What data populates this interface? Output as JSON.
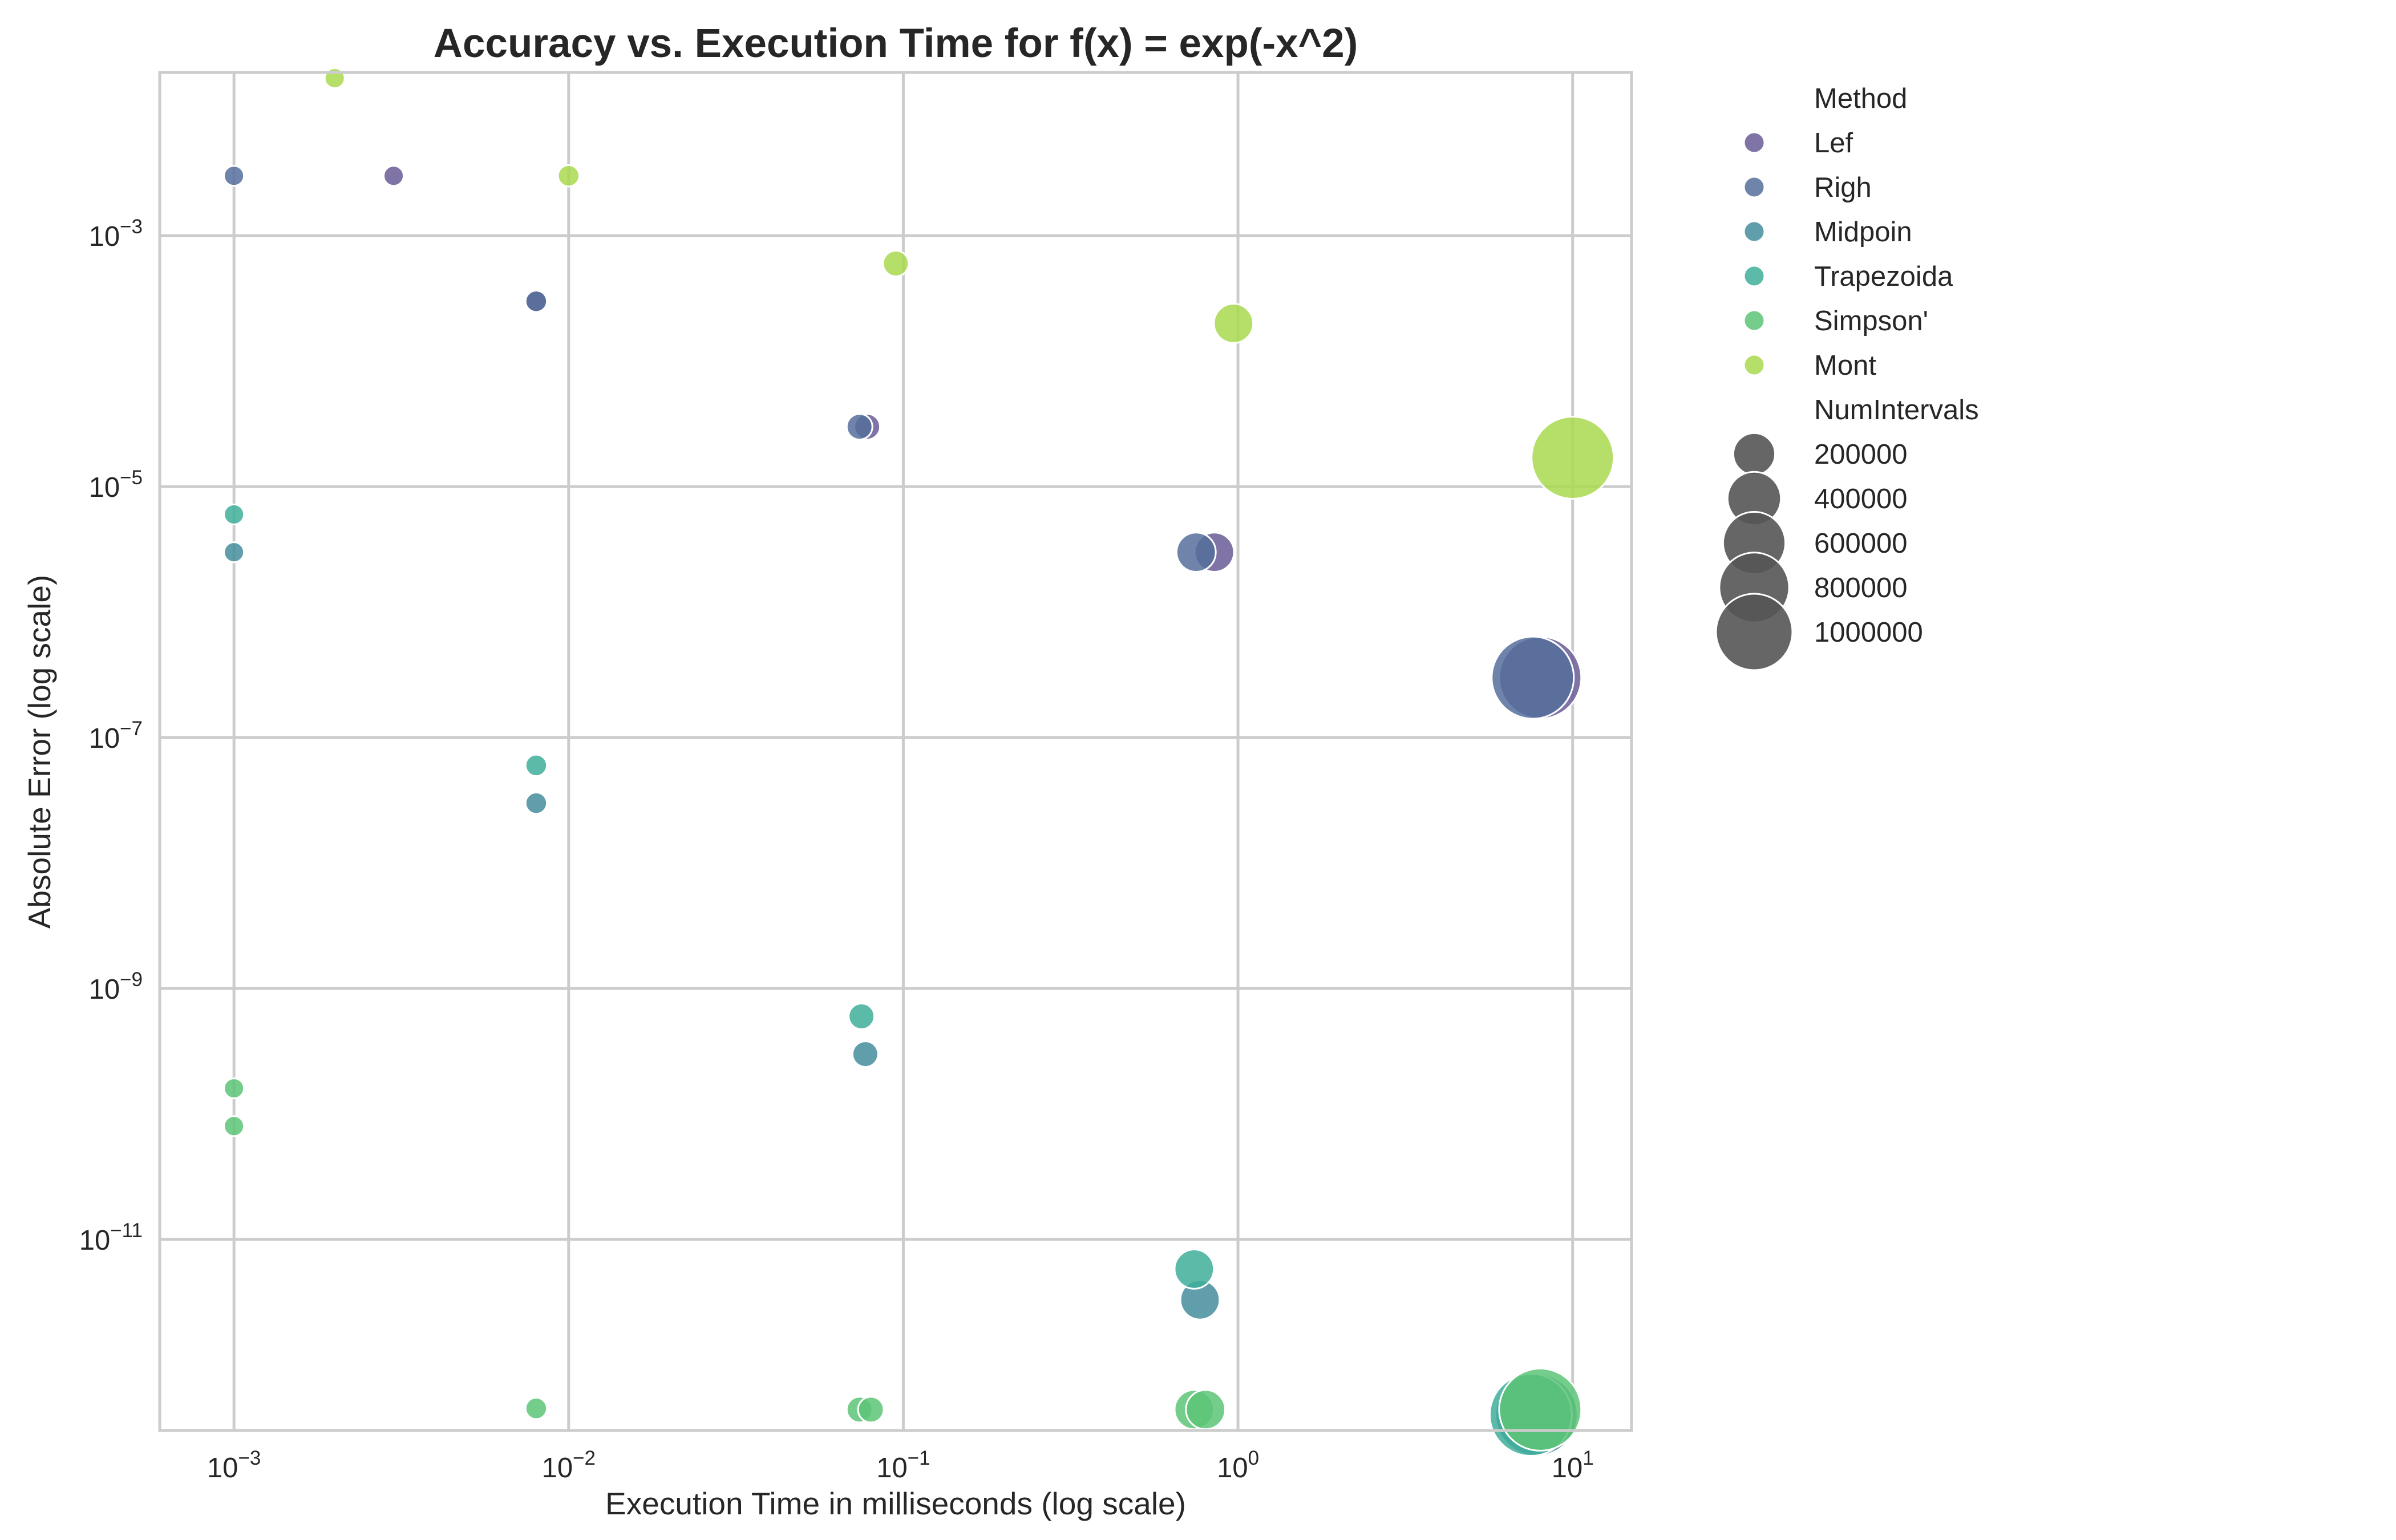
{
  "chart_data": {
    "type": "scatter",
    "title": "Accuracy vs. Execution Time for f(x) = exp(-x^2)",
    "xlabel": "Execution Time in milliseconds (log scale)",
    "ylabel": "Absolute Error (log scale)",
    "xscale": "log",
    "yscale": "log",
    "xlim": [
      0.0006,
      15
    ],
    "ylim": [
      3e-13,
      0.02
    ],
    "grid": true,
    "legend_placement": "outside-top-right",
    "x_ticks": [
      {
        "value": 0.001,
        "label": "10^-3",
        "base": "10",
        "exp": "−3"
      },
      {
        "value": 0.01,
        "label": "10^-2",
        "base": "10",
        "exp": "−2"
      },
      {
        "value": 0.1,
        "label": "10^-1",
        "base": "10",
        "exp": "−1"
      },
      {
        "value": 1,
        "label": "10^0",
        "base": "10",
        "exp": "0"
      },
      {
        "value": 10,
        "label": "10^1",
        "base": "10",
        "exp": "1"
      }
    ],
    "y_ticks": [
      {
        "value": 0.001,
        "label": "10^-3",
        "base": "10",
        "exp": "−3"
      },
      {
        "value": 1e-05,
        "label": "10^-5",
        "base": "10",
        "exp": "−5"
      },
      {
        "value": 1e-07,
        "label": "10^-7",
        "base": "10",
        "exp": "−7"
      },
      {
        "value": 1e-09,
        "label": "10^-9",
        "base": "10",
        "exp": "−9"
      },
      {
        "value": 1e-11,
        "label": "10^-11",
        "base": "10",
        "exp": "−11"
      }
    ],
    "hue_title": "Method",
    "size_title": "NumIntervals",
    "size_range": [
      200000,
      1000000
    ],
    "series": [
      {
        "name": "Lef",
        "color": "#6a5a96",
        "points": [
          {
            "x": 0.003,
            "y": 0.003,
            "n": 100
          },
          {
            "x": 0.008,
            "y": 0.0003,
            "n": 1000
          },
          {
            "x": 0.078,
            "y": 3e-05,
            "n": 10000
          },
          {
            "x": 0.85,
            "y": 3e-06,
            "n": 100000
          },
          {
            "x": 8.0,
            "y": 3e-07,
            "n": 1000000
          }
        ]
      },
      {
        "name": "Righ",
        "color": "#556e9b",
        "points": [
          {
            "x": 0.001,
            "y": 0.003,
            "n": 100
          },
          {
            "x": 0.008,
            "y": 0.0003,
            "n": 1000
          },
          {
            "x": 0.074,
            "y": 3e-05,
            "n": 10000
          },
          {
            "x": 0.75,
            "y": 3e-06,
            "n": 100000
          },
          {
            "x": 7.6,
            "y": 3e-07,
            "n": 1000000
          }
        ]
      },
      {
        "name": "Midpoin",
        "color": "#448d9c",
        "points": [
          {
            "x": 0.001,
            "y": 3e-06,
            "n": 100
          },
          {
            "x": 0.008,
            "y": 3e-08,
            "n": 1000
          },
          {
            "x": 0.077,
            "y": 3e-10,
            "n": 10000
          },
          {
            "x": 0.77,
            "y": 3.3e-12,
            "n": 100000
          },
          {
            "x": 7.8,
            "y": 4e-13,
            "n": 1000000
          }
        ]
      },
      {
        "name": "Trapezoida",
        "color": "#3fae9a",
        "points": [
          {
            "x": 0.001,
            "y": 6e-06,
            "n": 100
          },
          {
            "x": 0.008,
            "y": 6e-08,
            "n": 1000
          },
          {
            "x": 0.075,
            "y": 6e-10,
            "n": 10000
          },
          {
            "x": 0.74,
            "y": 5.8e-12,
            "n": 100000
          },
          {
            "x": 7.5,
            "y": 4e-13,
            "n": 1000000
          }
        ]
      },
      {
        "name": "Simpson'",
        "color": "#5dc477",
        "points": [
          {
            "x": 0.001,
            "y": 1.6e-10,
            "n": 100
          },
          {
            "x": 0.001,
            "y": 8e-11,
            "n": 100
          },
          {
            "x": 0.008,
            "y": 4.5e-13,
            "n": 1000
          },
          {
            "x": 0.074,
            "y": 4.4e-13,
            "n": 10000
          },
          {
            "x": 0.08,
            "y": 4.4e-13,
            "n": 10000
          },
          {
            "x": 0.74,
            "y": 4.4e-13,
            "n": 100000
          },
          {
            "x": 0.8,
            "y": 4.4e-13,
            "n": 100000
          },
          {
            "x": 8.0,
            "y": 4.4e-13,
            "n": 1000000
          }
        ]
      },
      {
        "name": "Mont",
        "color": "#a8d94e",
        "points": [
          {
            "x": 0.002,
            "y": 0.018,
            "n": 100
          },
          {
            "x": 0.01,
            "y": 0.003,
            "n": 1000
          },
          {
            "x": 0.095,
            "y": 0.0006,
            "n": 10000
          },
          {
            "x": 0.97,
            "y": 0.0002,
            "n": 100000
          },
          {
            "x": 10.0,
            "y": 1.7e-05,
            "n": 1000000
          }
        ]
      }
    ],
    "size_legend": [
      {
        "label": "200000",
        "value": 200000
      },
      {
        "label": "400000",
        "value": 400000
      },
      {
        "label": "600000",
        "value": 600000
      },
      {
        "label": "800000",
        "value": 800000
      },
      {
        "label": "1000000",
        "value": 1000000
      }
    ],
    "size_legend_color": "#555555"
  }
}
